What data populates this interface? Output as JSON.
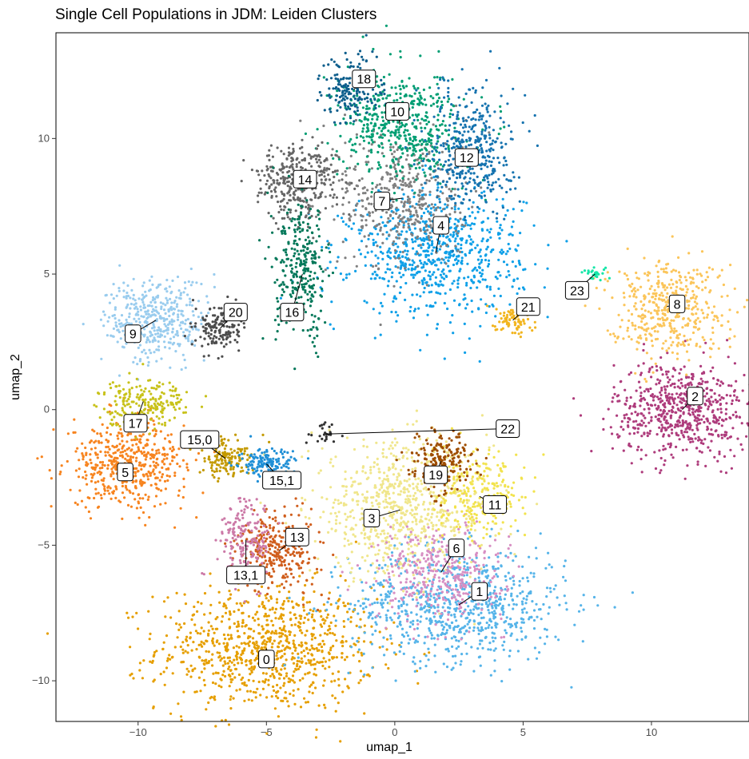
{
  "chart_data": {
    "type": "scatter",
    "title": "Single Cell Populations in JDM: Leiden Clusters",
    "xlabel": "umap_1",
    "ylabel": "umap_2",
    "xlim": [
      -13.2,
      13.8
    ],
    "ylim": [
      -11.5,
      13.9
    ],
    "xticks": [
      -10,
      -5,
      0,
      5,
      10
    ],
    "yticks": [
      -10,
      -5,
      0,
      5,
      10
    ],
    "grid": false,
    "legend": "none",
    "clusters": [
      {
        "label": "0",
        "color": "#E69F00",
        "cx": -5.0,
        "cy": -8.8,
        "sx": 2.4,
        "sy": 1.3,
        "n": 900,
        "label_x": -5.0,
        "label_y": -9.2
      },
      {
        "label": "1",
        "color": "#56B4E9",
        "cx": 2.5,
        "cy": -7.2,
        "sx": 2.4,
        "sy": 1.2,
        "n": 800,
        "label_x": 3.3,
        "label_y": -6.7
      },
      {
        "label": "2",
        "color": "#AE3C7C",
        "cx": 11.2,
        "cy": 0.0,
        "sx": 1.5,
        "sy": 1.0,
        "n": 650,
        "label_x": 11.7,
        "label_y": 0.5
      },
      {
        "label": "3",
        "color": "#F0E68C",
        "cx": 0.2,
        "cy": -3.7,
        "sx": 2.0,
        "sy": 1.4,
        "n": 750,
        "label_x": -0.9,
        "label_y": -4.0
      },
      {
        "label": "4",
        "color": "#0FA0E8",
        "cx": 1.6,
        "cy": 5.8,
        "sx": 1.9,
        "sy": 1.3,
        "n": 750,
        "label_x": 1.8,
        "label_y": 6.8
      },
      {
        "label": "5",
        "color": "#F7841F",
        "cx": -10.4,
        "cy": -2.0,
        "sx": 1.3,
        "sy": 0.9,
        "n": 500,
        "label_x": -10.5,
        "label_y": -2.3
      },
      {
        "label": "6",
        "color": "#D78FC3",
        "cx": 1.8,
        "cy": -6.0,
        "sx": 1.4,
        "sy": 1.0,
        "n": 380,
        "label_x": 2.4,
        "label_y": -5.1
      },
      {
        "label": "7",
        "color": "#808080",
        "cx": 0.3,
        "cy": 7.8,
        "sx": 1.4,
        "sy": 1.5,
        "n": 450,
        "label_x": -0.5,
        "label_y": 7.7
      },
      {
        "label": "8",
        "color": "#FBC55A",
        "cx": 10.6,
        "cy": 3.8,
        "sx": 1.3,
        "sy": 1.0,
        "n": 450,
        "label_x": 11.0,
        "label_y": 3.9
      },
      {
        "label": "9",
        "color": "#99CCEE",
        "cx": -9.3,
        "cy": 3.3,
        "sx": 1.1,
        "sy": 0.9,
        "n": 400,
        "label_x": -10.2,
        "label_y": 2.8
      },
      {
        "label": "10",
        "color": "#009E73",
        "cx": 0.2,
        "cy": 10.5,
        "sx": 1.4,
        "sy": 1.1,
        "n": 500,
        "label_x": 0.1,
        "label_y": 11.0
      },
      {
        "label": "11",
        "color": "#F2E34D",
        "cx": 3.3,
        "cy": -3.2,
        "sx": 1.0,
        "sy": 0.9,
        "n": 250,
        "label_x": 3.9,
        "label_y": -3.5
      },
      {
        "label": "12",
        "color": "#1673AF",
        "cx": 3.0,
        "cy": 9.6,
        "sx": 0.9,
        "sy": 1.3,
        "n": 400,
        "label_x": 2.8,
        "label_y": 9.3
      },
      {
        "label": "13",
        "color": "#D05E1D",
        "cx": -4.5,
        "cy": -5.2,
        "sx": 0.9,
        "sy": 0.8,
        "n": 300,
        "label_x": -3.8,
        "label_y": -4.7
      },
      {
        "label": "13,1",
        "color": "#CC79A7",
        "cx": -5.8,
        "cy": -4.8,
        "sx": 0.6,
        "sy": 0.9,
        "n": 180,
        "label_x": -5.8,
        "label_y": -6.1
      },
      {
        "label": "14",
        "color": "#666666",
        "cx": -3.8,
        "cy": 8.4,
        "sx": 0.9,
        "sy": 0.8,
        "n": 350,
        "label_x": -3.5,
        "label_y": 8.5
      },
      {
        "label": "15,0",
        "color": "#C49A00",
        "cx": -6.6,
        "cy": -1.8,
        "sx": 0.6,
        "sy": 0.4,
        "n": 140,
        "label_x": -7.6,
        "label_y": -1.1
      },
      {
        "label": "15,1",
        "color": "#1F8FD6",
        "cx": -5.0,
        "cy": -2.0,
        "sx": 0.6,
        "sy": 0.3,
        "n": 140,
        "label_x": -4.4,
        "label_y": -2.6
      },
      {
        "label": "16",
        "color": "#04785A",
        "cx": -3.6,
        "cy": 5.0,
        "sx": 0.6,
        "sy": 1.4,
        "n": 300,
        "label_x": -4.0,
        "label_y": 3.6
      },
      {
        "label": "17",
        "color": "#C8C21A",
        "cx": -9.8,
        "cy": 0.3,
        "sx": 1.0,
        "sy": 0.5,
        "n": 220,
        "label_x": -10.1,
        "label_y": -0.5
      },
      {
        "label": "18",
        "color": "#0D5E8C",
        "cx": -1.6,
        "cy": 11.8,
        "sx": 0.7,
        "sy": 0.7,
        "n": 170,
        "label_x": -1.2,
        "label_y": 12.2
      },
      {
        "label": "19",
        "color": "#9E4D00",
        "cx": 1.8,
        "cy": -1.9,
        "sx": 0.7,
        "sy": 0.6,
        "n": 200,
        "label_x": 1.6,
        "label_y": -2.4
      },
      {
        "label": "20",
        "color": "#4D4D4D",
        "cx": -6.8,
        "cy": 3.0,
        "sx": 0.5,
        "sy": 0.5,
        "n": 150,
        "label_x": -6.2,
        "label_y": 3.6
      },
      {
        "label": "21",
        "color": "#F2B51F",
        "cx": 4.6,
        "cy": 3.3,
        "sx": 0.4,
        "sy": 0.3,
        "n": 80,
        "label_x": 5.2,
        "label_y": 3.8
      },
      {
        "label": "22",
        "color": "#333333",
        "cx": -2.7,
        "cy": -0.9,
        "sx": 0.4,
        "sy": 0.25,
        "n": 25,
        "label_x": 4.4,
        "label_y": -0.7
      },
      {
        "label": "23",
        "color": "#16E6A8",
        "cx": 7.8,
        "cy": 5.0,
        "sx": 0.25,
        "sy": 0.12,
        "n": 30,
        "label_x": 7.1,
        "label_y": 4.4
      }
    ]
  }
}
